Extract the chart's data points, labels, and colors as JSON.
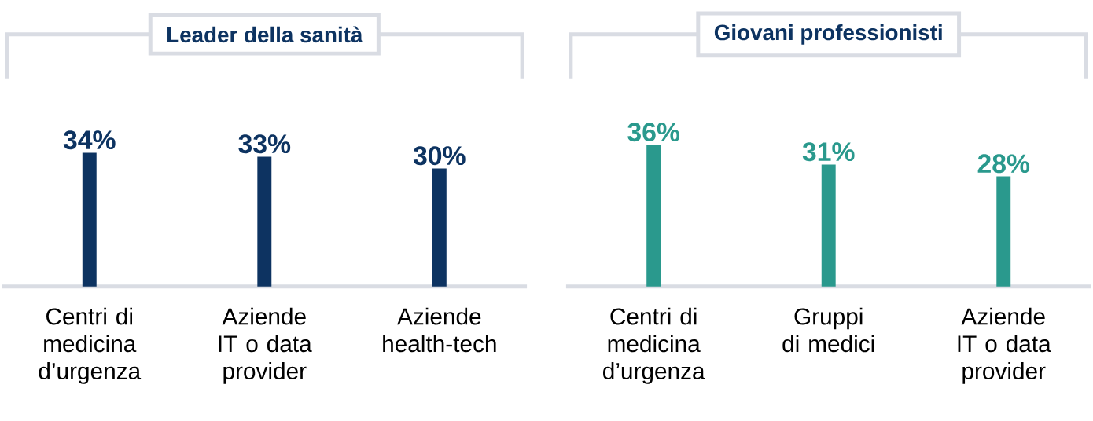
{
  "chart_data": [
    {
      "type": "bar",
      "title": "Leader della sanità",
      "categories": [
        "Centri di medicina d’urgenza",
        "Aziende IT o data provider",
        "Aziende health-tech"
      ],
      "values": [
        34,
        33,
        30
      ],
      "value_labels": [
        "34%",
        "33%",
        "30%"
      ],
      "color": "#0d3361"
    },
    {
      "type": "bar",
      "title": "Giovani professionisti",
      "categories": [
        "Centri di medicina d’urgenza",
        "Gruppi di medici",
        "Aziende IT o data provider"
      ],
      "values": [
        36,
        31,
        28
      ],
      "value_labels": [
        "36%",
        "31%",
        "28%"
      ],
      "color": "#2a998d"
    }
  ]
}
